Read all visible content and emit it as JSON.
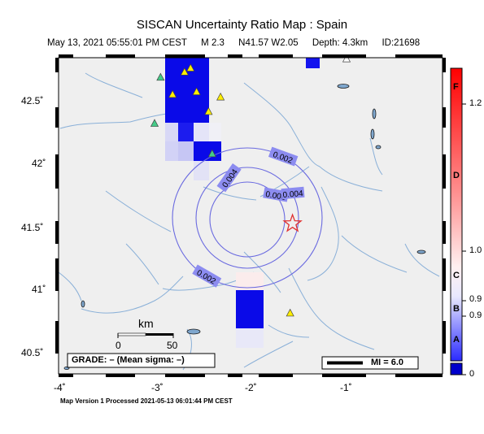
{
  "header": {
    "title": "SISCAN Uncertainty Ratio Map : Spain",
    "subtitle": {
      "datetime": "May 13, 2021 05:55:01 PM CEST",
      "magnitude": "M 2.3",
      "location": "N41.57 W2.05",
      "depth": "Depth: 4.3km",
      "id": "ID:21698"
    }
  },
  "map": {
    "lon_range": [
      -4.0,
      -0.8
    ],
    "lat_range": [
      40.43,
      42.83
    ],
    "x_tick_labels": [
      "-4˚",
      "-3˚",
      "-2˚",
      "-1˚"
    ],
    "y_tick_labels": [
      "42.5˚",
      "42˚",
      "41.5˚",
      "41˚",
      "40.5˚"
    ],
    "epicenter": {
      "lon": -2.05,
      "lat": 41.57,
      "symbol": "star-icon",
      "color": "#e03030"
    },
    "contour_labels": [
      "0.002",
      "0.004",
      "0.006",
      "0.004",
      "0.002"
    ],
    "grade_text": "GRADE: – (Mean sigma: –)",
    "scale_bar": {
      "unit_label": "km",
      "tick_0": "0",
      "tick_50": "50"
    },
    "mi_legend": "MI = 6.0",
    "footer": "Map Version 1 Processed 2021-05-13 06:01:44 PM CEST"
  },
  "colorbar": {
    "letters": [
      "F",
      "D",
      "C",
      "B",
      "A"
    ],
    "values": [
      "1.2",
      "1.0",
      "0.9",
      "0.9",
      "0"
    ],
    "colors": {
      "high": "#ff0000",
      "mid": "#ffffff",
      "low": "#0000ff"
    }
  },
  "stations": [
    {
      "lon": -2.9,
      "lat": 42.75,
      "color": "#ffee00"
    },
    {
      "lon": -2.95,
      "lat": 42.72,
      "color": "#ffee00"
    },
    {
      "lon": -3.15,
      "lat": 42.68,
      "color": "#44cc88"
    },
    {
      "lon": -2.85,
      "lat": 42.57,
      "color": "#ffee00"
    },
    {
      "lon": -3.05,
      "lat": 42.55,
      "color": "#ffee00"
    },
    {
      "lon": -2.65,
      "lat": 42.53,
      "color": "#ffee00"
    },
    {
      "lon": -2.75,
      "lat": 42.42,
      "color": "#ffee00"
    },
    {
      "lon": -3.2,
      "lat": 42.33,
      "color": "#44cc88"
    },
    {
      "lon": -2.72,
      "lat": 42.1,
      "color": "#44cc88"
    },
    {
      "lon": -2.07,
      "lat": 40.89,
      "color": "#ffee00"
    },
    {
      "lon": -1.6,
      "lat": 42.82,
      "color": "#ffffff"
    }
  ]
}
